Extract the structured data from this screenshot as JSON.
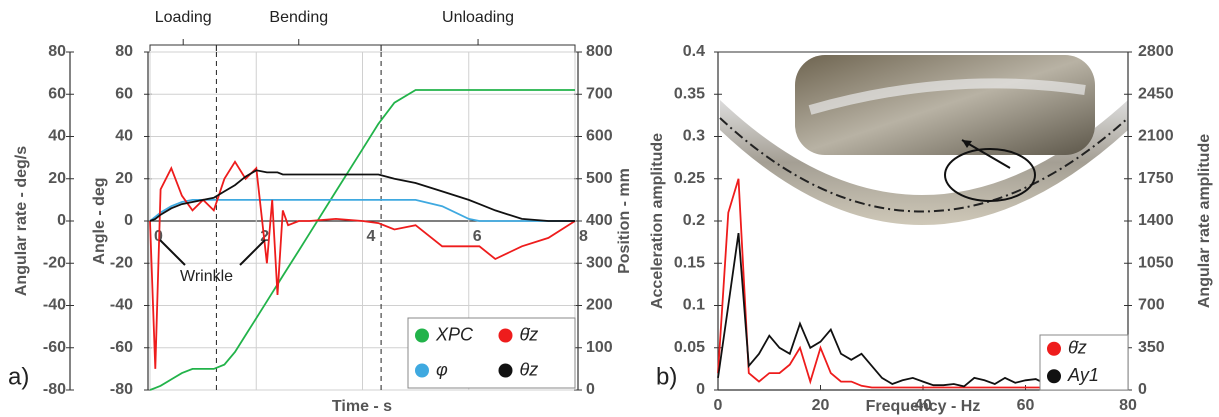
{
  "chart_data": [
    {
      "type": "line",
      "panel": "a)",
      "xlabel": "Time - s",
      "ylabel": "Angular rate - deg/s",
      "y3label": "Angle - deg",
      "y2label": "Position - mm",
      "x": [
        0,
        0.1,
        0.2,
        0.4,
        0.6,
        0.8,
        1.0,
        1.2,
        1.4,
        1.6,
        1.8,
        2.0,
        2.2,
        2.3,
        2.4,
        2.5,
        2.6,
        2.8,
        3.0,
        3.5,
        4.0,
        4.3,
        4.6,
        5.0,
        5.5,
        6.0,
        6.2,
        6.5,
        7.0,
        7.5,
        8.0
      ],
      "xlim": [
        0,
        8
      ],
      "xticks": [
        0,
        2,
        4,
        6,
        8
      ],
      "ylim": [
        -80,
        80
      ],
      "yticks": [
        -80,
        -60,
        -40,
        -20,
        0,
        20,
        40,
        60,
        80
      ],
      "y3lim": [
        -80,
        80
      ],
      "y3ticks": [
        -80,
        -60,
        -40,
        -20,
        0,
        20,
        40,
        60,
        80
      ],
      "y2lim": [
        0,
        800
      ],
      "y2ticks": [
        0,
        100,
        200,
        300,
        400,
        500,
        600,
        700,
        800
      ],
      "grid": true,
      "series": [
        {
          "name": "XPC",
          "color": "#22b34a",
          "axis": "y2",
          "values": [
            0,
            5,
            10,
            25,
            40,
            50,
            50,
            50,
            60,
            90,
            130,
            170,
            210,
            230,
            250,
            270,
            290,
            330,
            370,
            470,
            570,
            630,
            680,
            710,
            710,
            710,
            710,
            710,
            710,
            710,
            710
          ]
        },
        {
          "name": "φ",
          "color": "#3fa9e0",
          "axis": "y3",
          "values": [
            0,
            2,
            4,
            7,
            9,
            10,
            10,
            10,
            10,
            10,
            10,
            10,
            10,
            10,
            10,
            10,
            10,
            10,
            10,
            10,
            10,
            10,
            10,
            10,
            7,
            1,
            0,
            0,
            0,
            0,
            0
          ]
        },
        {
          "name": "θ̇z",
          "color": "#ee1c1c",
          "axis": "y",
          "values": [
            0,
            -70,
            15,
            25,
            12,
            5,
            10,
            5,
            20,
            28,
            20,
            25,
            -20,
            10,
            -35,
            5,
            -2,
            0,
            0,
            1,
            0,
            -1,
            -4,
            -2,
            -12,
            -12,
            -12,
            -18,
            -12,
            -8,
            0
          ]
        },
        {
          "name": "θz",
          "color": "#111111",
          "axis": "y3",
          "values": [
            0,
            1,
            3,
            6,
            8,
            9,
            10,
            11,
            14,
            17,
            21,
            24,
            23,
            23,
            23,
            22,
            22,
            22,
            22,
            22,
            22,
            22,
            20,
            18,
            14,
            10,
            8,
            5,
            1,
            0,
            0
          ]
        }
      ],
      "phases": [
        {
          "label": "Loading",
          "start": 0,
          "end": 1.25
        },
        {
          "label": "Bending",
          "start": 1.25,
          "end": 4.35
        },
        {
          "label": "Unloading",
          "start": 4.35,
          "end": 8
        }
      ],
      "annotation": "Wrinkle"
    },
    {
      "type": "line",
      "panel": "b)",
      "xlabel": "Frequency - Hz",
      "ylabel": "Acceleration amplitude",
      "y2label": "Angular rate amplitude",
      "x": [
        0,
        2,
        4,
        6,
        8,
        10,
        12,
        14,
        16,
        18,
        20,
        22,
        24,
        26,
        28,
        30,
        32,
        34,
        36,
        38,
        40,
        42,
        44,
        46,
        48,
        50,
        52,
        54,
        56,
        58,
        60,
        62,
        64,
        66,
        68,
        70,
        72,
        74,
        76,
        78,
        80
      ],
      "xlim": [
        0,
        80
      ],
      "xticks": [
        0,
        20,
        40,
        60,
        80
      ],
      "ylim": [
        0,
        0.4
      ],
      "yticks": [
        0,
        0.05,
        0.1,
        0.15,
        0.2,
        0.25,
        0.3,
        0.35,
        0.4
      ],
      "y2lim": [
        0,
        2800
      ],
      "y2ticks": [
        0,
        350,
        700,
        1050,
        1400,
        1750,
        2100,
        2450,
        2800
      ],
      "grid": false,
      "series": [
        {
          "name": "θ̇z",
          "color": "#ee1c1c",
          "axis": "y",
          "values": [
            0.02,
            0.21,
            0.25,
            0.02,
            0.01,
            0.02,
            0.02,
            0.03,
            0.05,
            0.01,
            0.05,
            0.02,
            0.01,
            0.01,
            0.005,
            0.003,
            0.003,
            0.003,
            0.003,
            0.003,
            0.003,
            0.003,
            0.003,
            0.003,
            0.003,
            0.003,
            0.003,
            0.003,
            0.003,
            0.003,
            0.003,
            0.003,
            0.003,
            0.003,
            0.003,
            0.003,
            0.003,
            0.003,
            0.003,
            0.003,
            0.003
          ]
        },
        {
          "name": "Ay1",
          "color": "#111111",
          "axis": "y2",
          "values": [
            100,
            700,
            1300,
            200,
            300,
            450,
            350,
            300,
            550,
            350,
            400,
            500,
            300,
            250,
            300,
            200,
            100,
            50,
            80,
            100,
            70,
            40,
            40,
            50,
            30,
            100,
            80,
            50,
            100,
            60,
            80,
            90,
            50,
            100,
            60,
            80,
            40,
            60,
            40,
            50,
            20
          ]
        }
      ]
    }
  ]
}
